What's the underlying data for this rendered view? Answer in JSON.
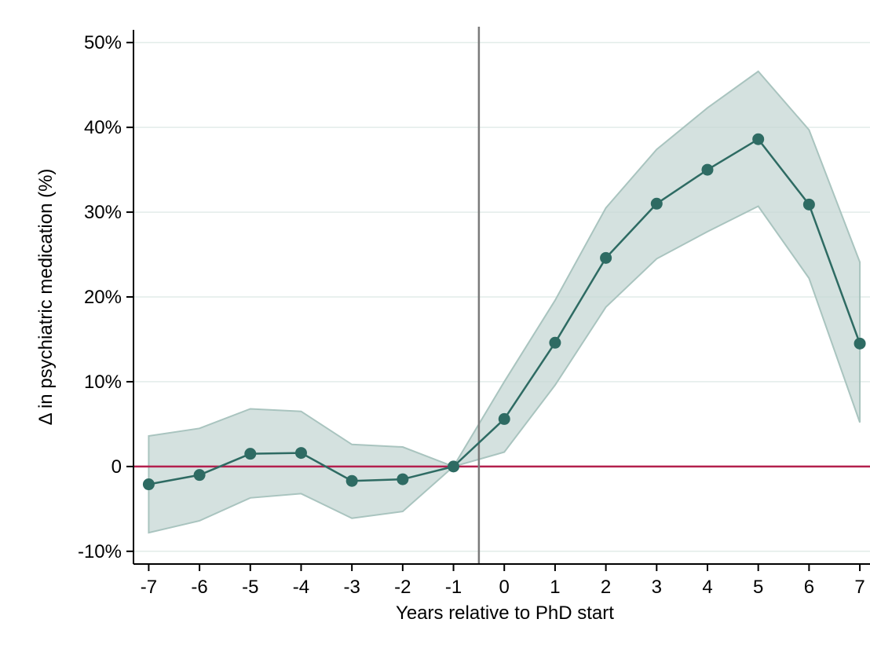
{
  "chart_data": {
    "type": "line",
    "xlabel": "Years relative to PhD start",
    "ylabel": "Δ in psychiatric medication (%)",
    "x": [
      -7,
      -6,
      -5,
      -4,
      -3,
      -2,
      -1,
      0,
      1,
      2,
      3,
      4,
      5,
      6,
      7
    ],
    "x_tick_labels": [
      "-7",
      "-6",
      "-5",
      "-4",
      "-3",
      "-2",
      "-1",
      "0",
      "1",
      "2",
      "3",
      "4",
      "5",
      "6",
      "7"
    ],
    "y_ticks": [
      -10,
      0,
      10,
      20,
      30,
      40,
      50
    ],
    "y_tick_labels": [
      "-10%",
      "0",
      "10%",
      "20%",
      "30%",
      "40%",
      "50%"
    ],
    "xlim": [
      -7.3,
      7.2
    ],
    "ylim": [
      -11.5,
      51.5
    ],
    "series": [
      {
        "values": [
          -2.1,
          -1.0,
          1.5,
          1.6,
          -1.7,
          -1.5,
          0.0,
          5.6,
          14.6,
          24.6,
          31.0,
          35.0,
          38.6,
          30.9,
          14.5
        ],
        "ci_lower": [
          -7.8,
          -6.4,
          -3.7,
          -3.2,
          -6.1,
          -5.3,
          0.0,
          1.7,
          9.6,
          18.8,
          24.5,
          27.7,
          30.7,
          22.2,
          5.2
        ],
        "ci_upper": [
          3.6,
          4.5,
          6.8,
          6.5,
          2.6,
          2.3,
          0.0,
          10.0,
          19.6,
          30.5,
          37.4,
          42.3,
          46.6,
          39.7,
          24.1
        ]
      }
    ],
    "reference_lines": {
      "horizontal_at": 0,
      "vertical_at": -0.5
    },
    "grid": "horizontal",
    "colors": {
      "series": "#2e6b63",
      "band_fill": "#c5d7d4",
      "band_edge": "#a9c4bf",
      "zero_line": "#b3204e",
      "vertical_line": "#7a7a7a",
      "grid": "#e2ece9",
      "axis": "#000000"
    }
  }
}
